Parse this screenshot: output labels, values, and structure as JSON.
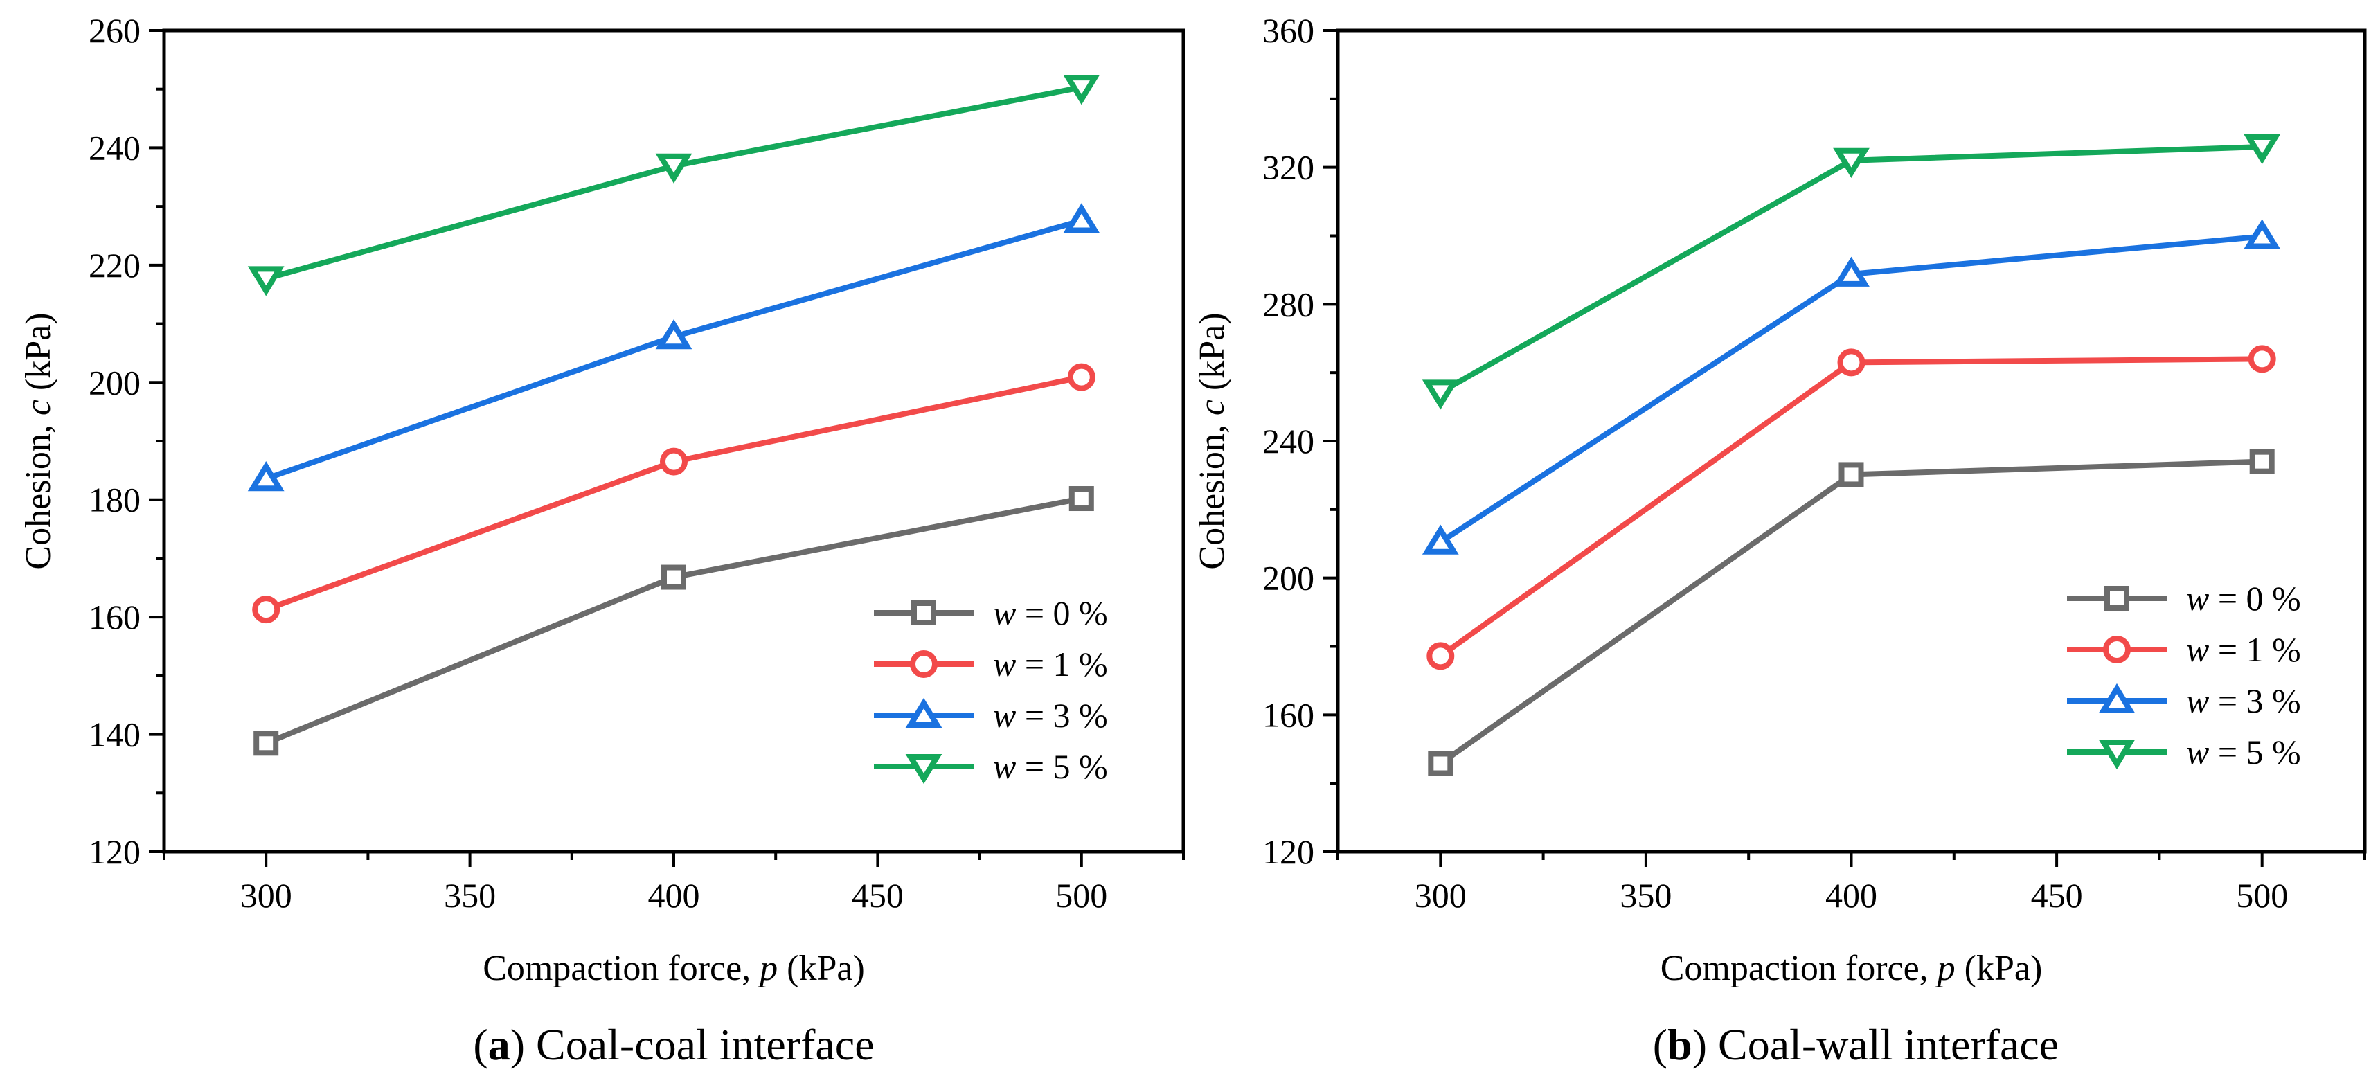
{
  "figure": {
    "legend_prefix": "w",
    "legend_unit_template": " = {v} %"
  },
  "chart_data": [
    {
      "type": "line",
      "caption_letter": "a",
      "caption_text": " Coal-coal interface",
      "xlabel": {
        "prefix": "Compaction force, ",
        "var": "p",
        "suffix": " (kPa)"
      },
      "ylabel": {
        "prefix": "Cohesion, ",
        "var": "c",
        "suffix": " (kPa)"
      },
      "x": [
        300,
        400,
        500
      ],
      "xlim": [
        275,
        525
      ],
      "xticks": [
        300,
        350,
        400,
        450,
        500
      ],
      "ylim": [
        120,
        260
      ],
      "yticks": [
        120,
        140,
        160,
        180,
        200,
        220,
        240,
        260
      ],
      "legend_position": "bottom-right",
      "series": [
        {
          "name": "w = 0 %",
          "w": "0",
          "marker": "square",
          "color": "#6b6b6b",
          "values": [
            138.5,
            166.8,
            180.2
          ]
        },
        {
          "name": "w = 1 %",
          "w": "1",
          "marker": "circle",
          "color": "#f24a4a",
          "values": [
            161.3,
            186.5,
            200.9
          ]
        },
        {
          "name": "w = 3 %",
          "w": "3",
          "marker": "triangle-up",
          "color": "#1a72e0",
          "values": [
            183.6,
            207.8,
            227.6
          ]
        },
        {
          "name": "w = 5 %",
          "w": "5",
          "marker": "triangle-down",
          "color": "#14a85a",
          "values": [
            217.7,
            236.9,
            250.3
          ]
        }
      ]
    },
    {
      "type": "line",
      "caption_letter": "b",
      "caption_text": " Coal-wall interface",
      "xlabel": {
        "prefix": "Compaction force, ",
        "var": "p",
        "suffix": " (kPa)"
      },
      "ylabel": {
        "prefix": "Cohesion, ",
        "var": "c",
        "suffix": " (kPa)"
      },
      "x": [
        300,
        400,
        500
      ],
      "xlim": [
        275,
        525
      ],
      "xticks": [
        300,
        350,
        400,
        450,
        500
      ],
      "ylim": [
        120,
        360
      ],
      "yticks": [
        120,
        160,
        200,
        240,
        280,
        320,
        360
      ],
      "legend_position": "bottom-right",
      "series": [
        {
          "name": "w = 0 %",
          "w": "0",
          "marker": "square",
          "color": "#6b6b6b",
          "values": [
            145.8,
            230.2,
            234.0
          ]
        },
        {
          "name": "w = 1 %",
          "w": "1",
          "marker": "circle",
          "color": "#f24a4a",
          "values": [
            177.2,
            263.0,
            264.0
          ]
        },
        {
          "name": "w = 3 %",
          "w": "3",
          "marker": "triangle-up",
          "color": "#1a72e0",
          "values": [
            210.5,
            288.8,
            299.8
          ]
        },
        {
          "name": "w = 5 %",
          "w": "5",
          "marker": "triangle-down",
          "color": "#14a85a",
          "values": [
            254.3,
            322.0,
            326.0
          ]
        }
      ]
    }
  ]
}
